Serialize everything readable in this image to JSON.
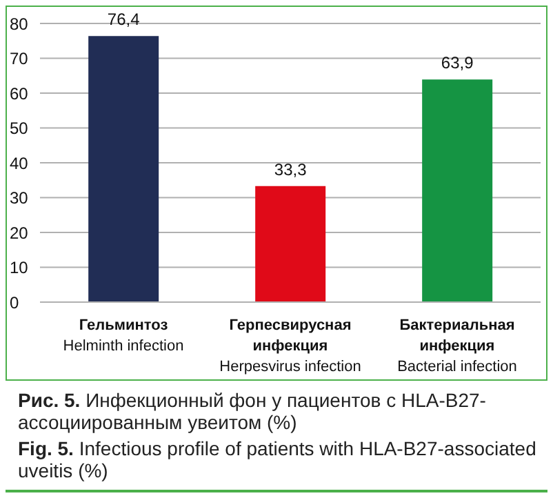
{
  "chart_data": {
    "type": "bar",
    "categories": [
      "Гельминтоз\nHelminth infection",
      "Герпесвирусная инфекция\nHerpesvirus infection",
      "Бактериальная инфекция\nBacterial infection"
    ],
    "values": [
      76.4,
      33.3,
      63.9
    ],
    "colors": [
      "#212d55",
      "#e00a18",
      "#159443"
    ],
    "value_labels": [
      "76,4",
      "33,3",
      "63,9"
    ],
    "ylim": [
      0,
      80
    ],
    "yticks": [
      0,
      10,
      20,
      30,
      40,
      50,
      60,
      70,
      80
    ],
    "grid": "y",
    "annotations": [
      "Рис. 5. Инфекционный фон у пациентов с HLA-B27-ассоциированным увеитом (%)",
      "Fig. 5. Infectious profile of patients with HLA-B27-associated uveitis (%)"
    ]
  }
}
